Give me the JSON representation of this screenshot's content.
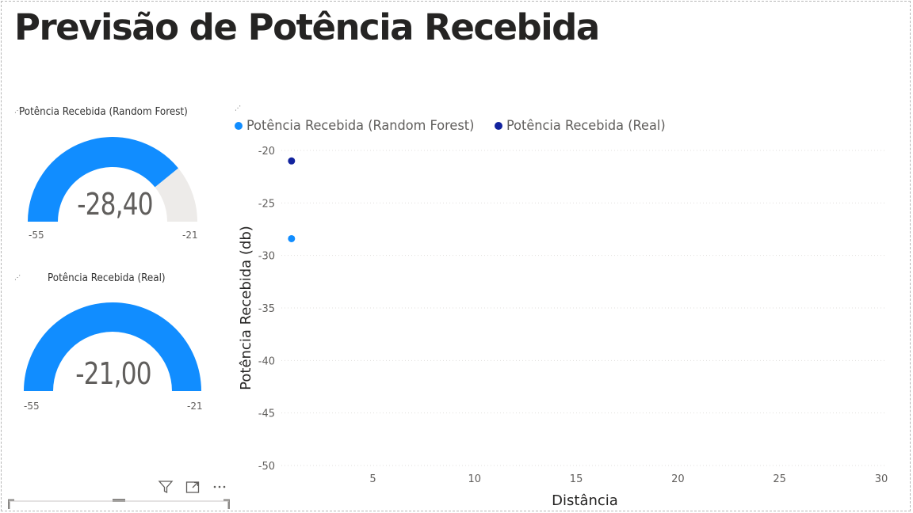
{
  "page": {
    "title": "Previsão de Potência Recebida"
  },
  "gauges": [
    {
      "label": "Potência Recebida (Random Forest)",
      "value_text": "-28,40",
      "value": -28.4,
      "min": -55,
      "max": -21,
      "min_text": "-55",
      "max_text": "-21",
      "fill_color": "#118DFF",
      "track_color": "#EDEBE9"
    },
    {
      "label": "Potência Recebida (Real)",
      "value_text": "-21,00",
      "value": -21.0,
      "min": -55,
      "max": -21,
      "min_text": "-55",
      "max_text": "-21",
      "fill_color": "#118DFF",
      "track_color": "#EDEBE9"
    }
  ],
  "chart_data": {
    "type": "scatter",
    "title": "",
    "xlabel": "Distância",
    "ylabel": "Potência Recebida (db)",
    "xlim": [
      0.5,
      30
    ],
    "ylim": [
      -50,
      -20
    ],
    "xticks": [
      5,
      10,
      15,
      20,
      25,
      30
    ],
    "yticks": [
      -20,
      -25,
      -30,
      -35,
      -40,
      -45,
      -50
    ],
    "grid": "horizontal dotted",
    "legend_position": "top-left",
    "series": [
      {
        "name": "Potência Recebida (Random Forest)",
        "color": "#118DFF",
        "points": [
          {
            "x": 1,
            "y": -28.4
          }
        ]
      },
      {
        "name": "Potência Recebida (Real)",
        "color": "#12239E",
        "points": [
          {
            "x": 1,
            "y": -21.0
          }
        ]
      }
    ]
  },
  "toolbar": {
    "icons": [
      "filter-icon",
      "focus-mode-icon",
      "more-options-icon"
    ]
  }
}
